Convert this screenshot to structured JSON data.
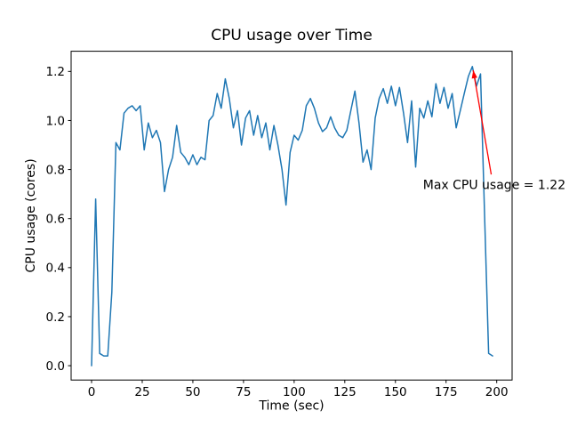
{
  "figure": {
    "kind": "matplotlib line chart figure",
    "background_color": "#ffffff",
    "spine_color": "#000000"
  },
  "chart_data": {
    "type": "line",
    "title": "CPU usage over Time",
    "xlabel": "Time (sec)",
    "ylabel": "CPU usage (cores)",
    "grid": false,
    "legend_position": "none",
    "line_color": "#1f77b4",
    "x_tick_labels": [
      "0",
      "25",
      "50",
      "75",
      "100",
      "125",
      "150",
      "175",
      "200"
    ],
    "x_tick_values": [
      0,
      25,
      50,
      75,
      100,
      125,
      150,
      175,
      200
    ],
    "y_tick_labels": [
      "0.0",
      "0.2",
      "0.4",
      "0.6",
      "0.8",
      "1.0",
      "1.2"
    ],
    "y_tick_values": [
      0.0,
      0.2,
      0.4,
      0.6,
      0.8,
      1.0,
      1.2
    ],
    "xlim": [
      -10.1,
      207.6
    ],
    "ylim": [
      -0.0585,
      1.2825
    ],
    "max_value": 1.22,
    "series": [
      {
        "name": "CPU usage (cores)",
        "x": [
          0,
          2,
          4,
          6,
          8,
          10,
          12,
          14,
          16,
          18,
          20,
          22,
          24,
          26,
          28,
          30,
          32,
          34,
          36,
          38,
          40,
          42,
          44,
          46,
          48,
          50,
          52,
          54,
          56,
          58,
          60,
          62,
          64,
          66,
          68,
          70,
          72,
          74,
          76,
          78,
          80,
          82,
          84,
          86,
          88,
          90,
          92,
          94,
          96,
          98,
          100,
          102,
          104,
          106,
          108,
          110,
          112,
          114,
          116,
          118,
          120,
          122,
          124,
          126,
          128,
          130,
          132,
          134,
          136,
          138,
          140,
          142,
          144,
          146,
          148,
          150,
          152,
          154,
          156,
          158,
          160,
          162,
          164,
          166,
          168,
          170,
          172,
          174,
          176,
          178,
          180,
          182,
          184,
          186,
          188,
          190,
          192,
          194,
          196,
          198
        ],
        "y": [
          0.0,
          0.68,
          0.05,
          0.04,
          0.04,
          0.3,
          0.91,
          0.88,
          1.03,
          1.05,
          1.06,
          1.04,
          1.06,
          0.88,
          0.99,
          0.93,
          0.96,
          0.91,
          0.71,
          0.8,
          0.85,
          0.98,
          0.87,
          0.85,
          0.82,
          0.86,
          0.82,
          0.85,
          0.84,
          1.0,
          1.02,
          1.11,
          1.05,
          1.17,
          1.09,
          0.97,
          1.04,
          0.9,
          1.01,
          1.04,
          0.94,
          1.02,
          0.93,
          0.99,
          0.88,
          0.98,
          0.9,
          0.8,
          0.655,
          0.87,
          0.94,
          0.92,
          0.96,
          1.06,
          1.09,
          1.05,
          0.99,
          0.955,
          0.97,
          1.015,
          0.97,
          0.94,
          0.93,
          0.96,
          1.04,
          1.12,
          0.99,
          0.83,
          0.88,
          0.8,
          1.01,
          1.09,
          1.13,
          1.07,
          1.14,
          1.06,
          1.135,
          1.03,
          0.91,
          1.08,
          0.81,
          1.05,
          1.01,
          1.08,
          1.015,
          1.15,
          1.07,
          1.135,
          1.05,
          1.11,
          0.97,
          1.04,
          1.11,
          1.18,
          1.22,
          1.14,
          1.19,
          0.62,
          0.05,
          0.04
        ]
      }
    ],
    "annotation": {
      "text": "Max CPU usage = 1.22",
      "color": "#ff0000",
      "xy": [
        188,
        1.22
      ],
      "text_pos": [
        163.6,
        0.72
      ],
      "arrow_tail": [
        197.3,
        0.78
      ],
      "arrow_tip": [
        188.4,
        1.205
      ]
    }
  }
}
